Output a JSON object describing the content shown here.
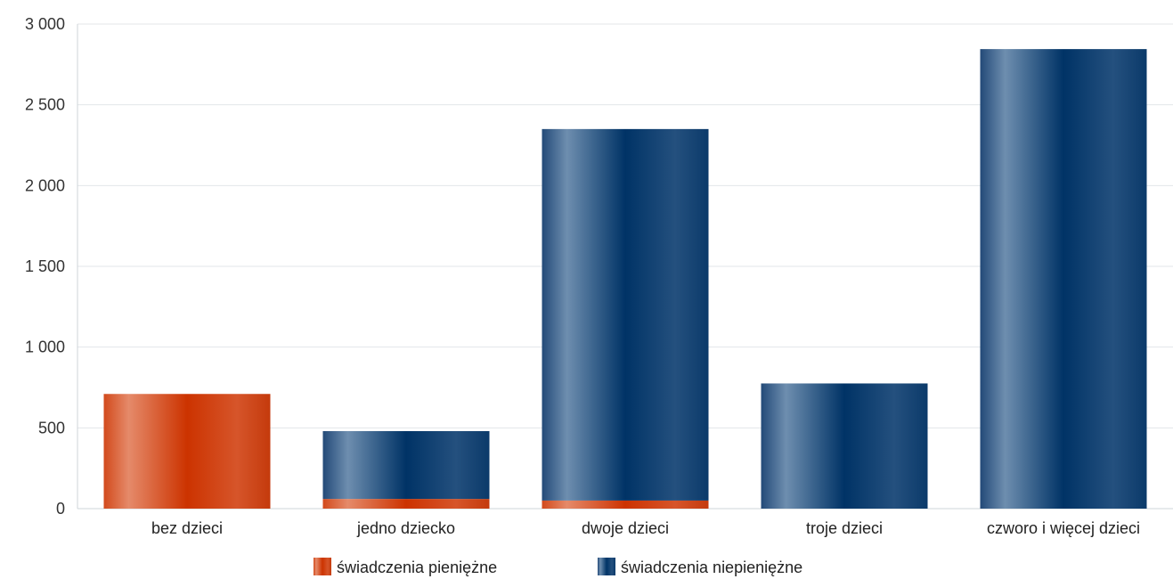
{
  "chart_data": {
    "type": "bar",
    "stacked": true,
    "categories": [
      "bez dzieci",
      "jedno dziecko",
      "dwoje dzieci",
      "troje dzieci",
      "czworo i więcej dzieci"
    ],
    "series": [
      {
        "name": "świadczenia pieniężne",
        "values": [
          710,
          60,
          50,
          0,
          0
        ],
        "color": "#cc3300"
      },
      {
        "name": "świadczenia niepieniężne",
        "values": [
          0,
          420,
          2300,
          775,
          2845
        ],
        "color": "#003366"
      }
    ],
    "yticks": [
      "0",
      "500",
      "1 000",
      "1 500",
      "2 000",
      "2 500",
      "3 000"
    ],
    "ytick_values": [
      0,
      500,
      1000,
      1500,
      2000,
      2500,
      3000
    ],
    "ylim": [
      0,
      3000
    ],
    "grid": true,
    "legend_position": "bottom"
  }
}
